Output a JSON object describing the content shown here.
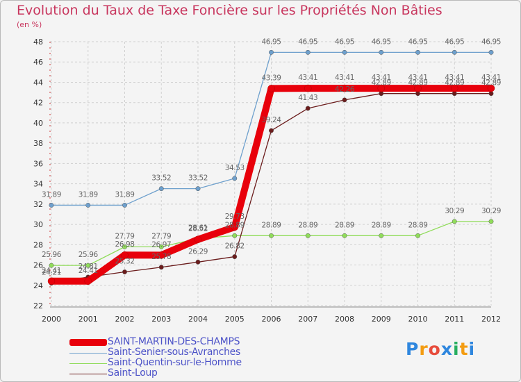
{
  "chart_data": {
    "type": "line",
    "title": "Evolution du Taux de Taxe Foncière sur les Propriétés Non Bâties",
    "unit_label": "(en %)",
    "categories": [
      "2000",
      "2001",
      "2002",
      "2003",
      "2004",
      "2005",
      "2006",
      "2007",
      "2008",
      "2009",
      "2010",
      "2011",
      "2012"
    ],
    "ylim": [
      22,
      48
    ],
    "yticks": [
      22,
      24,
      26,
      28,
      30,
      32,
      34,
      36,
      38,
      40,
      42,
      44,
      46,
      48
    ],
    "series": [
      {
        "name": "SAINT-MARTIN-DES-CHAMPS",
        "color": "#e8000b",
        "values": [
          24.41,
          24.41,
          26.98,
          26.97,
          28.52,
          29.73,
          43.39,
          43.41,
          43.41,
          43.41,
          43.41,
          43.41,
          43.41
        ],
        "labels": [
          "24.41",
          "24.41",
          "26.98",
          "26.97",
          "28.52",
          "29.73",
          "43.39",
          "43.41",
          "43.41",
          "43.41",
          "43.41",
          "43.41",
          "43.41"
        ]
      },
      {
        "name": "Saint-Senier-sous-Avranches",
        "color": "#6ea0cd",
        "values": [
          31.89,
          31.89,
          31.89,
          33.52,
          33.52,
          34.53,
          46.95,
          46.95,
          46.95,
          46.95,
          46.95,
          46.95,
          46.95
        ],
        "labels": [
          "31.89",
          "31.89",
          "31.89",
          "33.52",
          "33.52",
          "34.53",
          "46.95",
          "46.95",
          "46.95",
          "46.95",
          "46.95",
          "46.95",
          "46.95"
        ]
      },
      {
        "name": "Saint-Quentin-sur-le-Homme",
        "color": "#90dc5a",
        "values": [
          25.96,
          25.96,
          27.79,
          27.79,
          28.61,
          28.89,
          28.89,
          28.89,
          28.89,
          28.89,
          28.89,
          30.29,
          30.29
        ],
        "labels": [
          "25.96",
          "25.96",
          "27.79",
          "27.79",
          "28.61",
          "28.89",
          "28.89",
          "28.89",
          "28.89",
          "28.89",
          "28.89",
          "30.29",
          "30.29"
        ]
      },
      {
        "name": "Saint-Loup",
        "color": "#6b1c1c",
        "values": [
          24.21,
          24.81,
          25.32,
          25.78,
          26.29,
          26.82,
          39.24,
          41.43,
          42.26,
          42.89,
          42.89,
          42.89,
          42.89
        ],
        "labels": [
          "24.21",
          "24.81",
          "25.32",
          "25.78",
          "26.29",
          "26.82",
          "39.24",
          "41.43",
          "42.26",
          "42.89",
          "42.89",
          "42.89",
          "42.89"
        ]
      }
    ]
  },
  "logo": {
    "letters": [
      "P",
      "r",
      "o",
      "x",
      "i",
      "t",
      "i"
    ],
    "colors": [
      "#2e86de",
      "#f39c12",
      "#e74c3c",
      "#2e86de",
      "#27ae60",
      "#f39c12",
      "#2e86de"
    ]
  }
}
